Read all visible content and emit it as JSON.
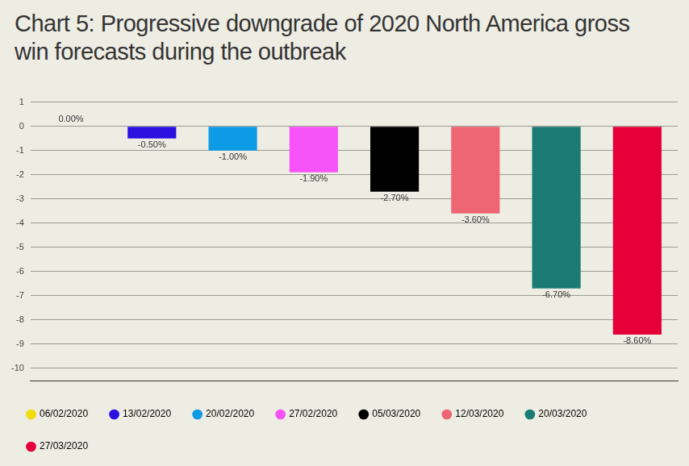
{
  "chart_data": {
    "type": "bar",
    "title": "Chart 5: Progressive downgrade of 2020 North America gross win forecasts during the outbreak",
    "categories": [
      "06/02/2020",
      "13/02/2020",
      "20/02/2020",
      "27/02/2020",
      "05/03/2020",
      "12/03/2020",
      "20/03/2020",
      "27/03/2020"
    ],
    "values": [
      0,
      -0.5,
      -1,
      -1.9,
      -2.7,
      -3.6,
      -6.7,
      -8.6
    ],
    "value_labels": [
      "0.00%",
      "-0.50%",
      "-1.00%",
      "-1.90%",
      "-2.70%",
      "-3.60%",
      "-6.70%",
      "-8.60%"
    ],
    "colors": [
      "#f2dc0c",
      "#2b10e0",
      "#0d9be6",
      "#f752f7",
      "#000000",
      "#ee6673",
      "#1b7a74",
      "#e6003a"
    ],
    "ylim": [
      -10.5,
      1
    ],
    "yticks": [
      1,
      0,
      -1,
      -2,
      -3,
      -4,
      -5,
      -6,
      -7,
      -8,
      -9,
      -10
    ],
    "grid": true,
    "legend": "bottom",
    "data_labels": true,
    "tick_labels": "y"
  }
}
